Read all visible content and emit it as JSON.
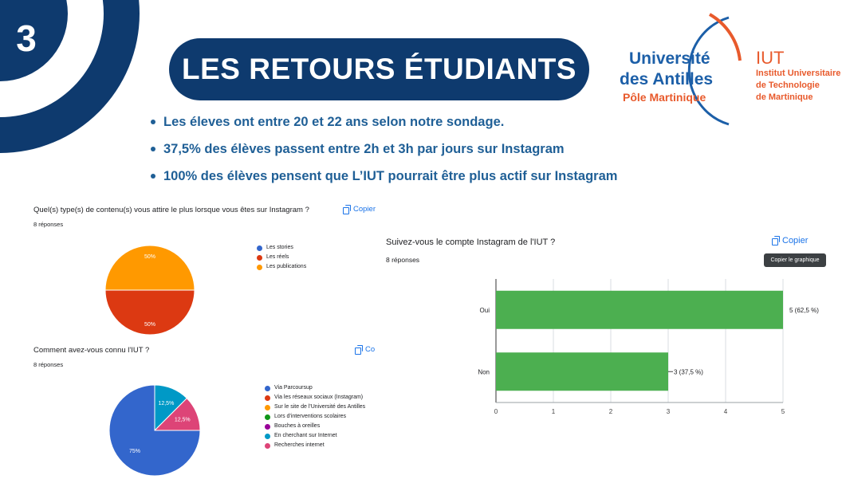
{
  "slide": {
    "number": "3",
    "title": "LES RETOURS ÉTUDIANTS",
    "colors": {
      "navy": "#0e3a6e",
      "bullet_text": "#1f5f96",
      "logo_blue": "#1c5fa8",
      "logo_orange": "#e85a2c"
    }
  },
  "logo": {
    "university_line1": "Université",
    "university_line2": "des Antilles",
    "university_line3": "Pôle Martinique",
    "iut_title": "IUT",
    "iut_line1": "Institut Universitaire",
    "iut_line2": "de Technologie",
    "iut_line3": "de Martinique"
  },
  "bullets": [
    "Les éleves ont entre 20 et 22 ans selon notre sondage.",
    "37,5% des élèves passent entre 2h et 3h par jours sur Instagram",
    "100% des élèves pensent que L’IUT pourrait être plus actif sur Instagram"
  ],
  "form_q1": {
    "question": "Quel(s) type(s) de contenu(s) vous attire le plus lorsque vous êtes sur Instagram ?",
    "responses": "8 réponses",
    "copy_label": "Copier"
  },
  "form_q2": {
    "question": "Comment avez-vous connu l'IUT ?",
    "responses": "8 réponses",
    "copy_label": "Co"
  },
  "form_q3": {
    "question": "Suivez-vous le compte Instagram de l'IUT ?",
    "responses": "8 réponses",
    "copy_label": "Copier",
    "tooltip": "Copier le graphique"
  },
  "chart_data": [
    {
      "type": "pie",
      "slices": [
        {
          "label": "Les stories",
          "value": 0,
          "color": "#3366cc"
        },
        {
          "label": "Les réels",
          "value": 50,
          "color": "#dc3912"
        },
        {
          "label": "Les publications",
          "value": 50,
          "color": "#ff9900"
        }
      ],
      "data_labels": [
        "50%",
        "50%"
      ],
      "legend": "right"
    },
    {
      "type": "pie",
      "slices": [
        {
          "label": "Via Parcoursup",
          "value": 75,
          "color": "#3366cc"
        },
        {
          "label": "Via les réseaux sociaux (Instagram)",
          "value": 0,
          "color": "#dc3912"
        },
        {
          "label": "Sur le site de l'Université des Antilles",
          "value": 0,
          "color": "#ff9900"
        },
        {
          "label": "Lors d'interventions scolaires",
          "value": 0,
          "color": "#109618"
        },
        {
          "label": "Bouches à oreilles",
          "value": 0,
          "color": "#990099"
        },
        {
          "label": "En cherchant sur Internet",
          "value": 12.5,
          "color": "#0099c6"
        },
        {
          "label": "Recherches internet",
          "value": 12.5,
          "color": "#dd4477"
        }
      ],
      "data_labels": [
        "75%",
        "12,5%",
        "12,5%"
      ],
      "legend": "right"
    },
    {
      "type": "bar",
      "orientation": "horizontal",
      "categories": [
        "Oui",
        "Non"
      ],
      "values": [
        5,
        3
      ],
      "value_labels": [
        "5 (62,5 %)",
        "3 (37,5 %)"
      ],
      "xlim": [
        0,
        5
      ],
      "xticks": [
        "0",
        "1",
        "2",
        "3",
        "4",
        "5"
      ],
      "color": "#4caf50",
      "grid": true
    }
  ]
}
